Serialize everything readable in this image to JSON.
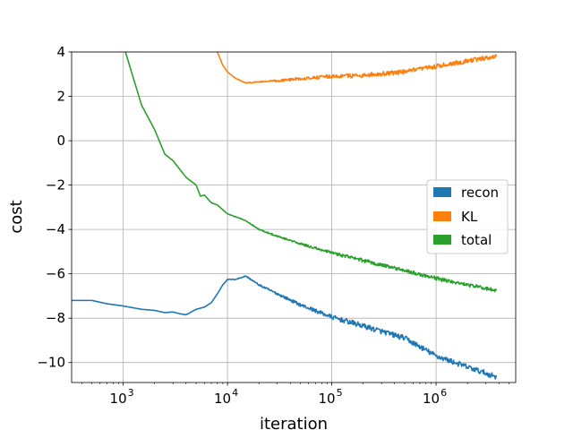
{
  "chart_data": {
    "type": "line",
    "title": "",
    "xlabel": "iteration",
    "ylabel": "cost",
    "xscale": "log",
    "xlim": [
      320,
      5800000
    ],
    "ylim": [
      -10.9,
      4.0
    ],
    "grid": true,
    "legend_position": "center-right",
    "x_ticks": [
      {
        "value": 1000,
        "base": "10",
        "exp": "3"
      },
      {
        "value": 10000,
        "base": "10",
        "exp": "4"
      },
      {
        "value": 100000,
        "base": "10",
        "exp": "5"
      },
      {
        "value": 1000000,
        "base": "10",
        "exp": "6"
      }
    ],
    "y_ticks": [
      {
        "value": 4,
        "label": "4"
      },
      {
        "value": 2,
        "label": "2"
      },
      {
        "value": 0,
        "label": "0"
      },
      {
        "value": -2,
        "label": "−2"
      },
      {
        "value": -4,
        "label": "−4"
      },
      {
        "value": -6,
        "label": "−6"
      },
      {
        "value": -8,
        "label": "−8"
      },
      {
        "value": -10,
        "label": "−10"
      }
    ],
    "series": [
      {
        "name": "recon",
        "color": "#1f77b4",
        "noise": 0.12,
        "points": [
          [
            320,
            -7.2
          ],
          [
            500,
            -7.2
          ],
          [
            700,
            -7.35
          ],
          [
            1000,
            -7.45
          ],
          [
            1500,
            -7.6
          ],
          [
            2000,
            -7.65
          ],
          [
            2500,
            -7.75
          ],
          [
            3000,
            -7.72
          ],
          [
            3500,
            -7.8
          ],
          [
            4000,
            -7.85
          ],
          [
            5000,
            -7.6
          ],
          [
            6000,
            -7.5
          ],
          [
            7000,
            -7.3
          ],
          [
            8000,
            -6.9
          ],
          [
            9000,
            -6.5
          ],
          [
            10000,
            -6.25
          ],
          [
            12000,
            -6.25
          ],
          [
            15000,
            -6.1
          ],
          [
            20000,
            -6.5
          ],
          [
            30000,
            -6.9
          ],
          [
            50000,
            -7.4
          ],
          [
            100000,
            -7.95
          ],
          [
            200000,
            -8.35
          ],
          [
            500000,
            -8.9
          ],
          [
            1000000,
            -9.7
          ],
          [
            2000000,
            -10.2
          ],
          [
            3800000,
            -10.65
          ]
        ]
      },
      {
        "name": "KL",
        "color": "#ff7f0e",
        "noise": 0.1,
        "points": [
          [
            8000,
            4.0
          ],
          [
            9000,
            3.4
          ],
          [
            10000,
            3.1
          ],
          [
            12000,
            2.8
          ],
          [
            15000,
            2.6
          ],
          [
            20000,
            2.65
          ],
          [
            30000,
            2.7
          ],
          [
            50000,
            2.8
          ],
          [
            100000,
            2.9
          ],
          [
            200000,
            2.95
          ],
          [
            500000,
            3.1
          ],
          [
            1000000,
            3.35
          ],
          [
            2000000,
            3.6
          ],
          [
            3800000,
            3.8
          ]
        ]
      },
      {
        "name": "total",
        "color": "#2ca02c",
        "noise": 0.08,
        "points": [
          [
            1050,
            4.0
          ],
          [
            1500,
            1.6
          ],
          [
            2000,
            0.5
          ],
          [
            2500,
            -0.6
          ],
          [
            3000,
            -0.9
          ],
          [
            3500,
            -1.3
          ],
          [
            4000,
            -1.65
          ],
          [
            5000,
            -2.0
          ],
          [
            5500,
            -2.5
          ],
          [
            6000,
            -2.45
          ],
          [
            7000,
            -2.8
          ],
          [
            8000,
            -2.9
          ],
          [
            10000,
            -3.3
          ],
          [
            15000,
            -3.6
          ],
          [
            20000,
            -4.0
          ],
          [
            30000,
            -4.3
          ],
          [
            50000,
            -4.65
          ],
          [
            100000,
            -5.05
          ],
          [
            200000,
            -5.4
          ],
          [
            500000,
            -5.85
          ],
          [
            1000000,
            -6.2
          ],
          [
            2000000,
            -6.5
          ],
          [
            3800000,
            -6.75
          ]
        ]
      }
    ]
  }
}
